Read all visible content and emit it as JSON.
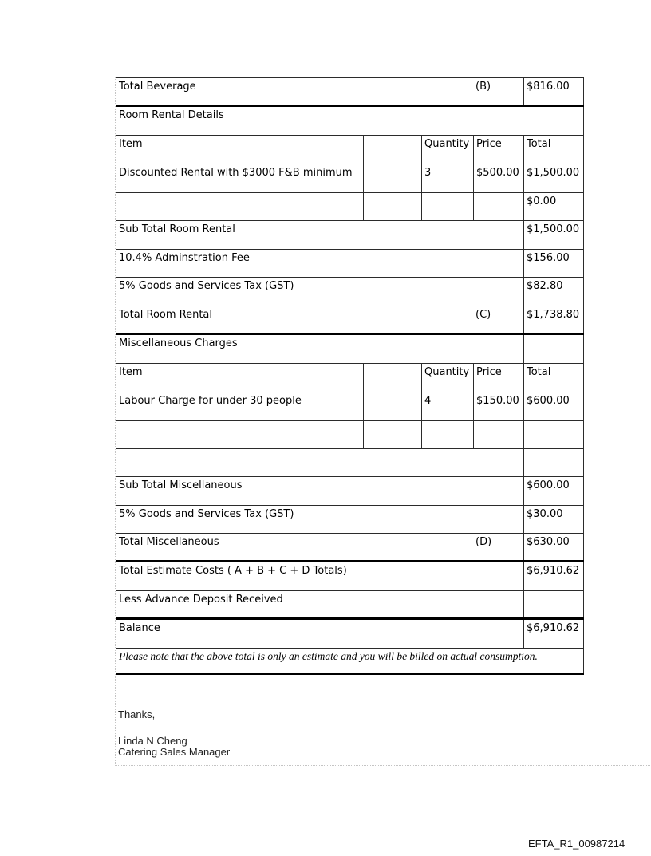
{
  "colors": {
    "border_thin": "#2b2b2b",
    "border_thick": "#000000",
    "frame_dotted": "#c4c4c4",
    "text": "#000000"
  },
  "table": {
    "header": {
      "item": "Item",
      "quantity": "Quantity",
      "price": "Price",
      "total": "Total"
    },
    "rows": {
      "total_beverage": {
        "label": "Total Beverage",
        "code": "(B)",
        "amount": "$816.00"
      },
      "room_rental_details": {
        "label": "Room Rental Details"
      },
      "discounted_rental": {
        "item": "Discounted Rental with $3000 F&B minimum",
        "quantity": "3",
        "price": "$500.00",
        "total": "$1,500.00"
      },
      "empty_rental_item": {
        "total": "$0.00"
      },
      "sub_total_room_rental": {
        "label": "Sub Total Room Rental",
        "amount": "$1,500.00"
      },
      "admin_fee": {
        "label": "10.4% Adminstration Fee",
        "amount": "$156.00"
      },
      "gst_room": {
        "label": "5% Goods and Services Tax (GST)",
        "amount": "$82.80"
      },
      "total_room_rental": {
        "label": "Total Room Rental",
        "code": "(C)",
        "amount": "$1,738.80"
      },
      "misc_charges": {
        "label": "Miscellaneous Charges"
      },
      "labour_charge": {
        "item": "Labour Charge for under 30 people",
        "quantity": "4",
        "price": "$150.00",
        "total": "$600.00"
      },
      "sub_total_misc": {
        "label": "Sub Total Miscellaneous",
        "amount": "$600.00"
      },
      "gst_misc": {
        "label": "5% Goods and Services Tax (GST)",
        "amount": "$30.00"
      },
      "total_misc": {
        "label": "Total Miscellaneous",
        "code": "(D)",
        "amount": "$630.00"
      },
      "total_estimate": {
        "label": "Total Estimate Costs ( A + B + C + D Totals)",
        "amount": "$6,910.62"
      },
      "less_deposit": {
        "label": "Less Advance Deposit Received"
      },
      "balance": {
        "label": "Balance",
        "amount": "$6,910.62"
      }
    },
    "note": "Please note that the above total is only an estimate and you will be billed on actual consumption."
  },
  "signature": {
    "thanks": "Thanks,",
    "name": "Linda N Cheng",
    "title": "Catering Sales Manager"
  },
  "footer": {
    "code": "EFTA_R1_00987214"
  }
}
